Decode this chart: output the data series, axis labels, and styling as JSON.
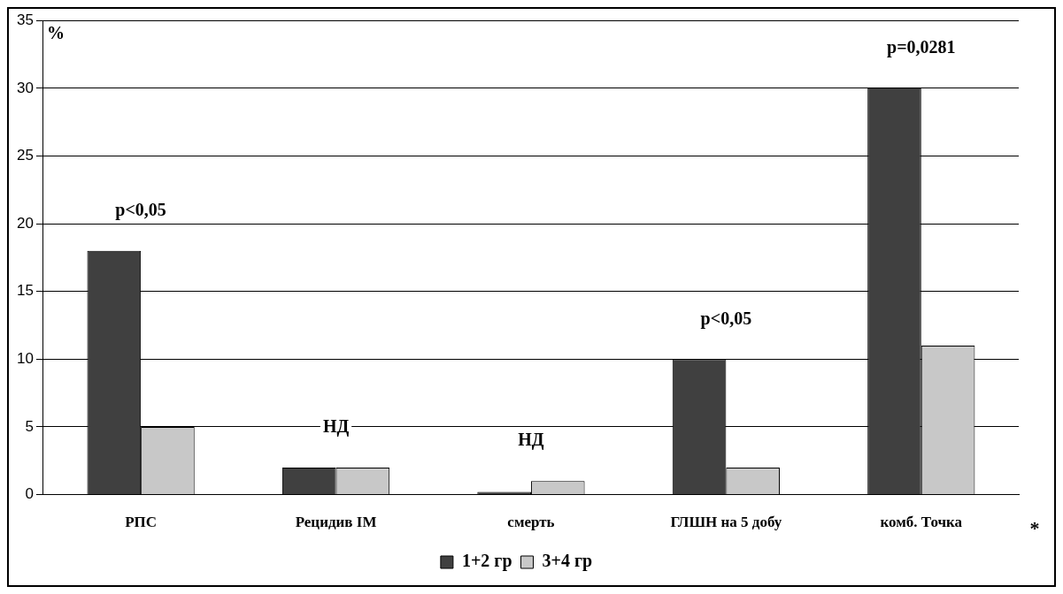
{
  "chart_data": {
    "type": "bar",
    "ylabel": "%",
    "categories": [
      "РПС",
      "Рецидив ІМ",
      "смерть",
      "ГЛШН на 5 добу",
      "комб. Точка"
    ],
    "series": [
      {
        "name": "1+2 гр",
        "color": "#404040",
        "values": [
          18,
          2,
          0.2,
          10,
          30
        ]
      },
      {
        "name": "3+4 гр",
        "color": "#c8c8c8",
        "values": [
          5,
          2,
          1,
          2,
          11
        ]
      }
    ],
    "ylim": [
      0,
      35
    ],
    "yticks": [
      0,
      5,
      10,
      15,
      20,
      25,
      30,
      35
    ],
    "grid": "y",
    "legend": "bottom",
    "annotations": [
      "p<0,05",
      "НД",
      "НД",
      "p<0,05",
      "p=0,0281",
      "*"
    ]
  }
}
